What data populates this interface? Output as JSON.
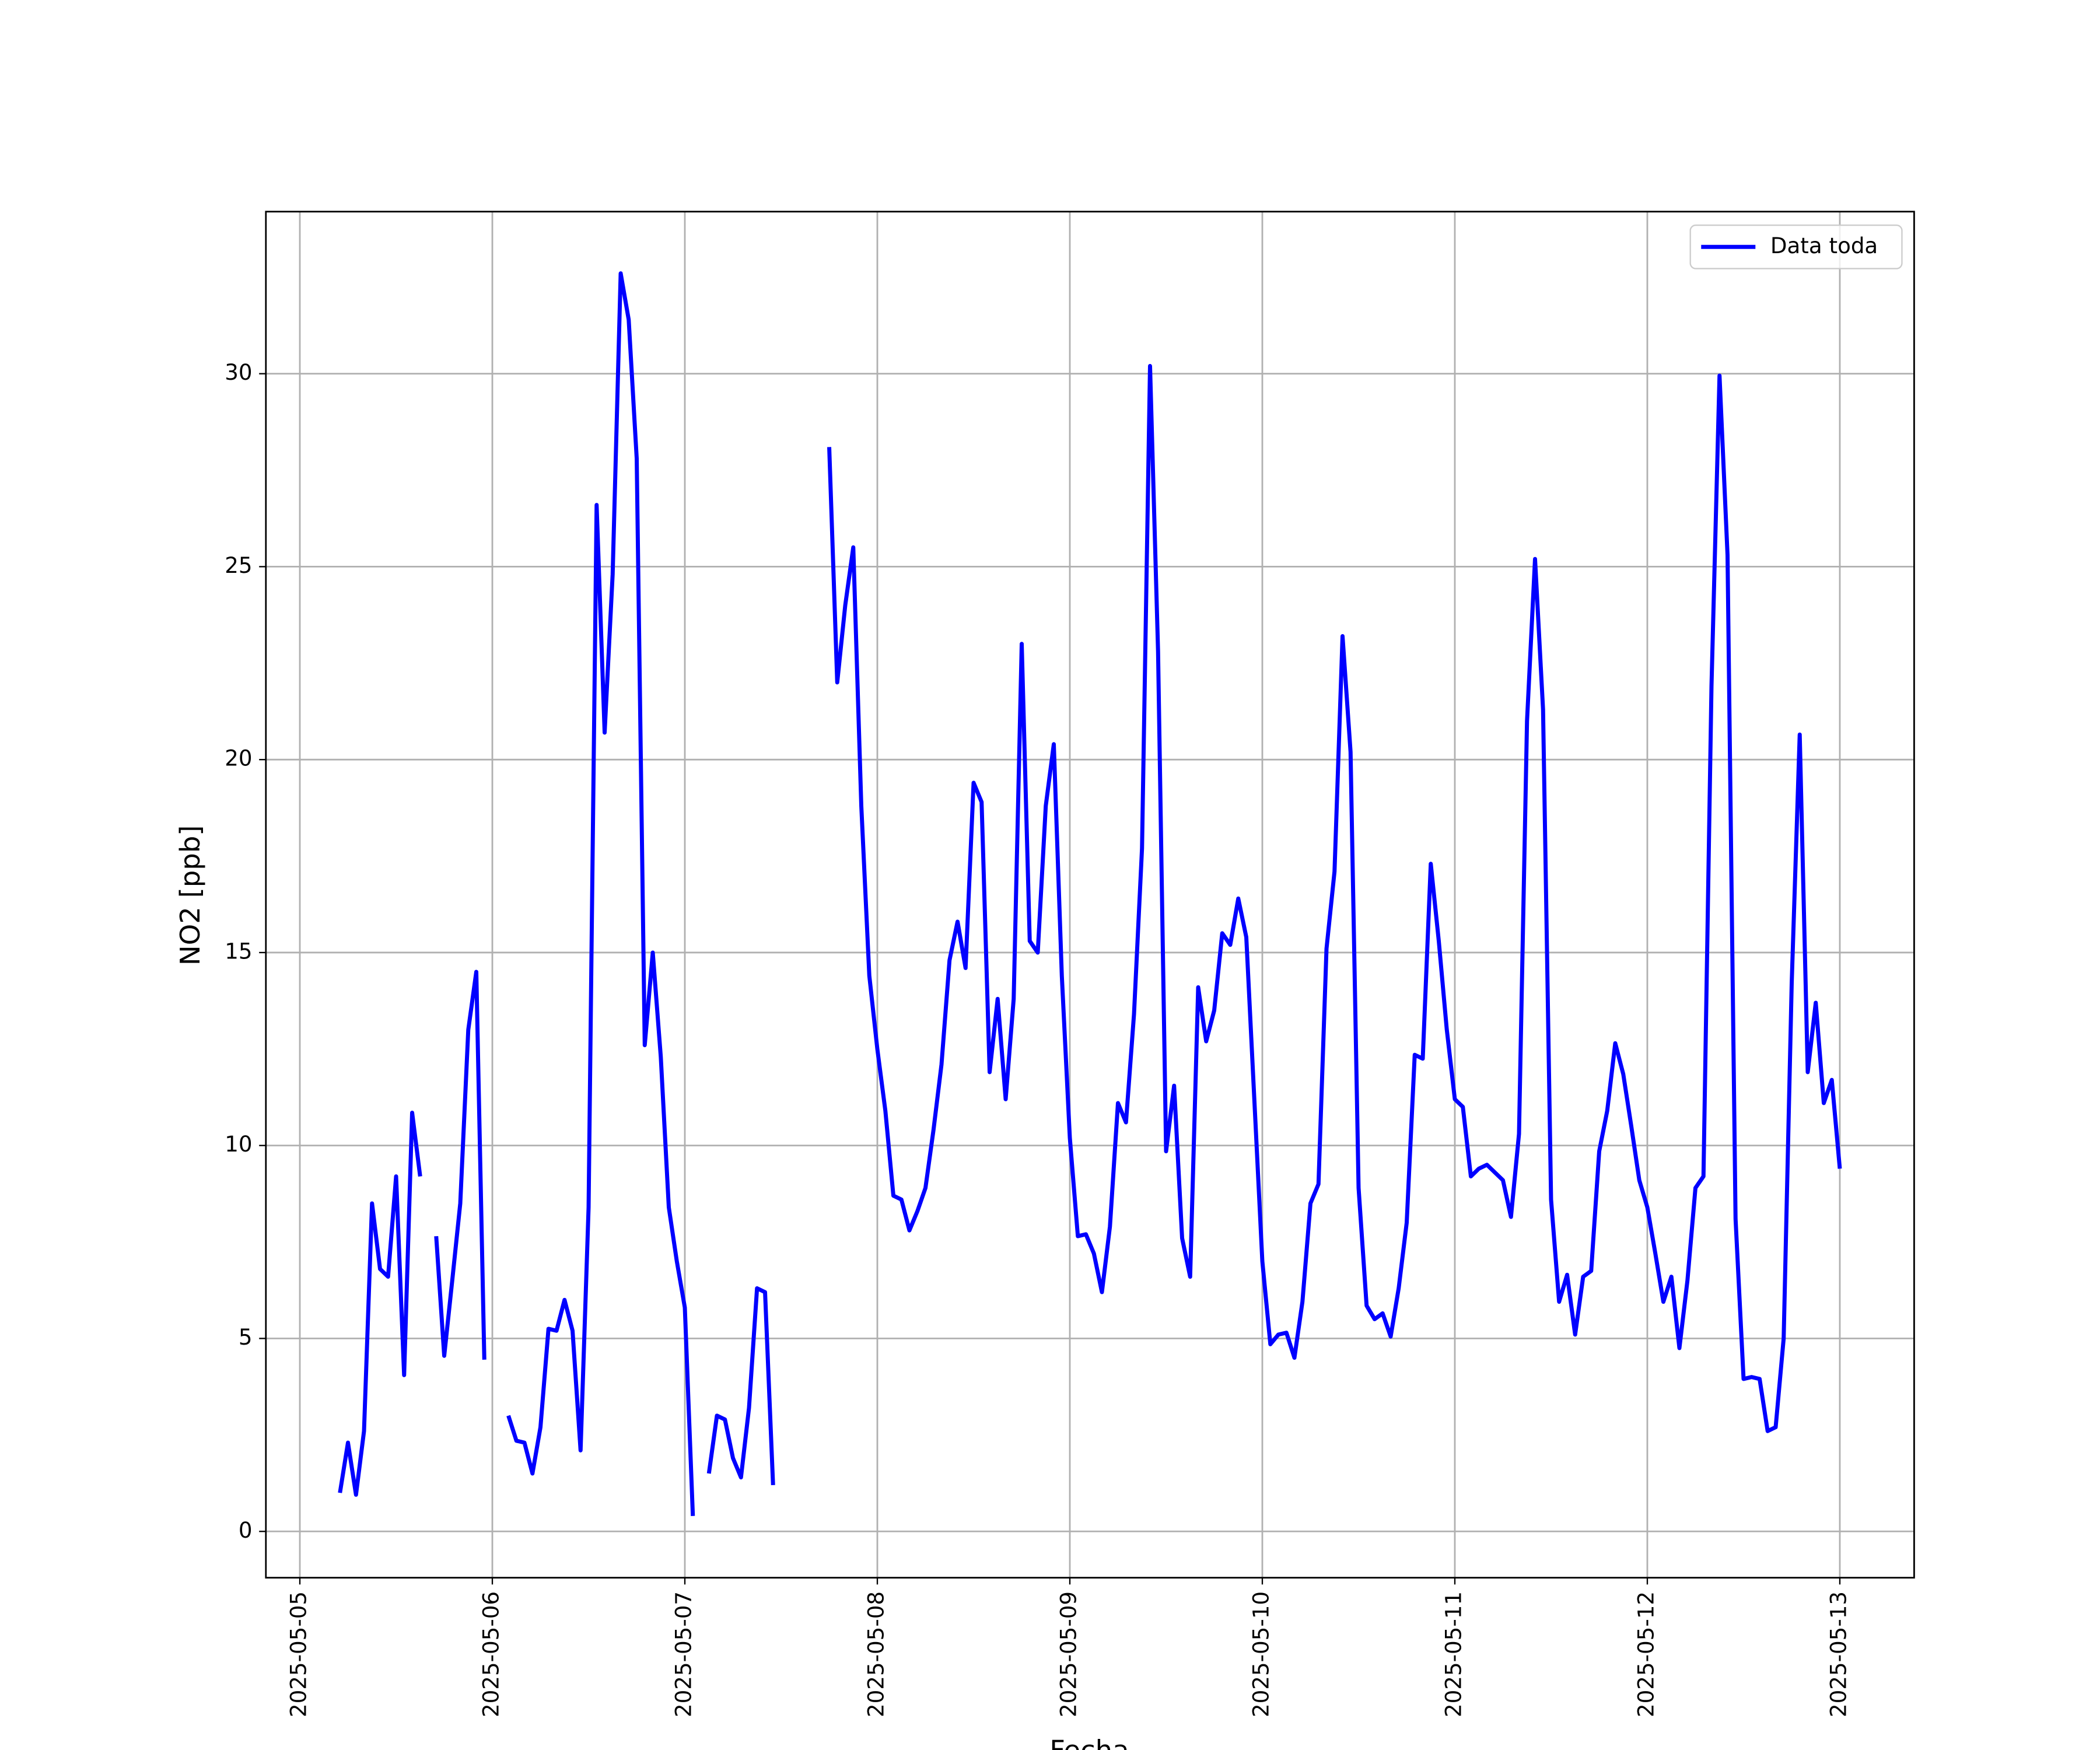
{
  "chart_data": {
    "type": "line",
    "x_label": "Fecha",
    "y_label": "NO2 [ppb]",
    "x": [
      "2025-05-05 05:00",
      "2025-05-05 06:00",
      "2025-05-05 07:00",
      "2025-05-05 08:00",
      "2025-05-05 09:00",
      "2025-05-05 10:00",
      "2025-05-05 11:00",
      "2025-05-05 12:00",
      "2025-05-05 13:00",
      "2025-05-05 14:00",
      "2025-05-05 15:00",
      "2025-05-05 16:00",
      "2025-05-05 17:00",
      "2025-05-05 18:00",
      "2025-05-05 19:00",
      "2025-05-05 20:00",
      "2025-05-05 21:00",
      "2025-05-05 22:00",
      "2025-05-05 23:00",
      "2025-05-06 00:00",
      "2025-05-06 01:00",
      "2025-05-06 02:00",
      "2025-05-06 03:00",
      "2025-05-06 04:00",
      "2025-05-06 05:00",
      "2025-05-06 06:00",
      "2025-05-06 07:00",
      "2025-05-06 08:00",
      "2025-05-06 09:00",
      "2025-05-06 10:00",
      "2025-05-06 11:00",
      "2025-05-06 12:00",
      "2025-05-06 13:00",
      "2025-05-06 14:00",
      "2025-05-06 15:00",
      "2025-05-06 16:00",
      "2025-05-06 17:00",
      "2025-05-06 18:00",
      "2025-05-06 19:00",
      "2025-05-06 20:00",
      "2025-05-06 21:00",
      "2025-05-06 22:00",
      "2025-05-06 23:00",
      "2025-05-07 00:00",
      "2025-05-07 01:00",
      "2025-05-07 02:00",
      "2025-05-07 03:00",
      "2025-05-07 04:00",
      "2025-05-07 05:00",
      "2025-05-07 06:00",
      "2025-05-07 07:00",
      "2025-05-07 08:00",
      "2025-05-07 09:00",
      "2025-05-07 10:00",
      "2025-05-07 11:00",
      "2025-05-07 12:00",
      "2025-05-07 13:00",
      "2025-05-07 14:00",
      "2025-05-07 15:00",
      "2025-05-07 16:00",
      "2025-05-07 17:00",
      "2025-05-07 18:00",
      "2025-05-07 19:00",
      "2025-05-07 20:00",
      "2025-05-07 21:00",
      "2025-05-07 22:00",
      "2025-05-07 23:00",
      "2025-05-08 00:00",
      "2025-05-08 01:00",
      "2025-05-08 02:00",
      "2025-05-08 03:00",
      "2025-05-08 04:00",
      "2025-05-08 05:00",
      "2025-05-08 06:00",
      "2025-05-08 07:00",
      "2025-05-08 08:00",
      "2025-05-08 09:00",
      "2025-05-08 10:00",
      "2025-05-08 11:00",
      "2025-05-08 12:00",
      "2025-05-08 13:00",
      "2025-05-08 14:00",
      "2025-05-08 15:00",
      "2025-05-08 16:00",
      "2025-05-08 17:00",
      "2025-05-08 18:00",
      "2025-05-08 19:00",
      "2025-05-08 20:00",
      "2025-05-08 21:00",
      "2025-05-08 22:00",
      "2025-05-08 23:00",
      "2025-05-09 00:00",
      "2025-05-09 01:00",
      "2025-05-09 02:00",
      "2025-05-09 03:00",
      "2025-05-09 04:00",
      "2025-05-09 05:00",
      "2025-05-09 06:00",
      "2025-05-09 07:00",
      "2025-05-09 08:00",
      "2025-05-09 09:00",
      "2025-05-09 10:00",
      "2025-05-09 11:00",
      "2025-05-09 12:00",
      "2025-05-09 13:00",
      "2025-05-09 14:00",
      "2025-05-09 15:00",
      "2025-05-09 16:00",
      "2025-05-09 17:00",
      "2025-05-09 18:00",
      "2025-05-09 19:00",
      "2025-05-09 20:00",
      "2025-05-09 21:00",
      "2025-05-09 22:00",
      "2025-05-09 23:00",
      "2025-05-10 00:00",
      "2025-05-10 01:00",
      "2025-05-10 02:00",
      "2025-05-10 03:00",
      "2025-05-10 04:00",
      "2025-05-10 05:00",
      "2025-05-10 06:00",
      "2025-05-10 07:00",
      "2025-05-10 08:00",
      "2025-05-10 09:00",
      "2025-05-10 10:00",
      "2025-05-10 11:00",
      "2025-05-10 12:00",
      "2025-05-10 13:00",
      "2025-05-10 14:00",
      "2025-05-10 15:00",
      "2025-05-10 16:00",
      "2025-05-10 17:00",
      "2025-05-10 18:00",
      "2025-05-10 19:00",
      "2025-05-10 20:00",
      "2025-05-10 21:00",
      "2025-05-10 22:00",
      "2025-05-10 23:00",
      "2025-05-11 00:00",
      "2025-05-11 01:00",
      "2025-05-11 02:00",
      "2025-05-11 03:00",
      "2025-05-11 04:00",
      "2025-05-11 05:00",
      "2025-05-11 06:00",
      "2025-05-11 07:00",
      "2025-05-11 08:00",
      "2025-05-11 09:00",
      "2025-05-11 10:00",
      "2025-05-11 11:00",
      "2025-05-11 12:00",
      "2025-05-11 13:00",
      "2025-05-11 14:00",
      "2025-05-11 15:00",
      "2025-05-11 16:00",
      "2025-05-11 17:00",
      "2025-05-11 18:00",
      "2025-05-11 19:00",
      "2025-05-11 20:00",
      "2025-05-11 21:00",
      "2025-05-11 22:00",
      "2025-05-11 23:00",
      "2025-05-12 00:00",
      "2025-05-12 01:00",
      "2025-05-12 02:00",
      "2025-05-12 03:00",
      "2025-05-12 04:00",
      "2025-05-12 05:00",
      "2025-05-12 06:00",
      "2025-05-12 07:00",
      "2025-05-12 08:00",
      "2025-05-12 09:00",
      "2025-05-12 10:00",
      "2025-05-12 11:00",
      "2025-05-12 12:00",
      "2025-05-12 13:00",
      "2025-05-12 14:00",
      "2025-05-12 15:00",
      "2025-05-12 16:00",
      "2025-05-12 17:00",
      "2025-05-12 18:00",
      "2025-05-12 19:00",
      "2025-05-12 20:00",
      "2025-05-12 21:00",
      "2025-05-12 22:00",
      "2025-05-12 23:00",
      "2025-05-13 00:00"
    ],
    "series": [
      {
        "name": "Data toda",
        "color": "#0000ff",
        "values": [
          1.0,
          2.3,
          0.95,
          2.6,
          8.5,
          6.8,
          6.6,
          9.2,
          4.05,
          10.85,
          9.2,
          null,
          7.65,
          4.55,
          6.5,
          8.5,
          13.0,
          14.5,
          4.45,
          null,
          null,
          3.0,
          2.35,
          2.3,
          1.5,
          2.7,
          5.25,
          5.2,
          6.0,
          5.2,
          2.1,
          8.4,
          26.6,
          20.7,
          24.8,
          32.6,
          31.4,
          27.8,
          12.6,
          15.0,
          12.3,
          8.4,
          7.0,
          5.8,
          0.4,
          null,
          1.5,
          3.0,
          2.9,
          1.9,
          1.4,
          3.2,
          6.3,
          6.2,
          1.2,
          null,
          null,
          null,
          null,
          null,
          null,
          28.1,
          22.0,
          24.0,
          25.5,
          18.8,
          14.4,
          12.5,
          10.9,
          8.7,
          8.6,
          7.8,
          8.3,
          8.9,
          10.4,
          12.1,
          14.8,
          15.8,
          14.6,
          19.4,
          18.9,
          11.9,
          13.8,
          11.2,
          13.8,
          23.0,
          15.3,
          15.0,
          18.8,
          20.4,
          14.4,
          10.2,
          7.65,
          7.7,
          7.2,
          6.2,
          7.9,
          11.1,
          10.6,
          13.4,
          17.7,
          30.2,
          22.8,
          9.85,
          11.55,
          7.6,
          6.6,
          14.1,
          12.7,
          13.5,
          15.5,
          15.2,
          16.4,
          15.4,
          11.2,
          7.0,
          4.85,
          5.1,
          5.15,
          4.5,
          5.95,
          8.5,
          9.0,
          15.1,
          17.1,
          23.2,
          20.2,
          8.9,
          5.85,
          5.5,
          5.65,
          5.05,
          6.3,
          8.0,
          12.35,
          12.25,
          17.3,
          15.3,
          13.0,
          11.2,
          11.0,
          9.2,
          9.4,
          9.5,
          9.3,
          9.1,
          8.15,
          10.3,
          21.0,
          25.2,
          21.3,
          8.6,
          5.95,
          6.65,
          5.1,
          6.6,
          6.75,
          9.85,
          10.9,
          12.65,
          11.85,
          10.5,
          9.1,
          8.4,
          7.2,
          5.95,
          6.6,
          4.75,
          6.5,
          8.9,
          9.2,
          21.9,
          29.95,
          25.3,
          8.1,
          3.95,
          4.0,
          3.95,
          2.6,
          2.7,
          5.0,
          14.2,
          20.65,
          11.9,
          13.7,
          11.1,
          11.7,
          9.4
        ]
      }
    ],
    "xlim": [
      "2025-05-04 19:46",
      "2025-05-13 09:16"
    ],
    "xticks": [
      "2025-05-05",
      "2025-05-06",
      "2025-05-07",
      "2025-05-08",
      "2025-05-09",
      "2025-05-10",
      "2025-05-11",
      "2025-05-12",
      "2025-05-13"
    ],
    "ylim": [
      -1.2,
      34.2
    ],
    "yticks": [
      0,
      5,
      10,
      15,
      20,
      25,
      30
    ],
    "grid": true,
    "legend": "upper right"
  }
}
